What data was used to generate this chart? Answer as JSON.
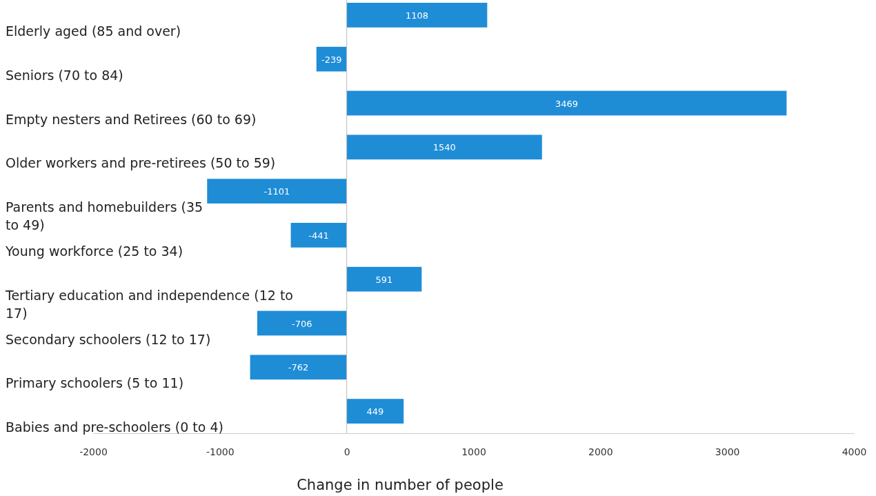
{
  "chart_data": {
    "type": "bar",
    "orientation": "horizontal",
    "xlabel": "Change in number of people",
    "categories": [
      "Elderly aged (85 and over)",
      "Seniors (70 to 84)",
      "Empty nesters and Retirees (60 to 69)",
      "Older workers and pre-retirees (50 to 59)",
      "Parents and homebuilders (35 to 49)",
      "Young workforce (25 to 34)",
      "Tertiary education and independence (12 to 17)",
      "Secondary schoolers (12 to 17)",
      "Primary schoolers (5 to 11)",
      "Babies and pre-schoolers (0 to 4)"
    ],
    "values": [
      1108,
      -239,
      3469,
      1540,
      -1101,
      -441,
      591,
      -706,
      -762,
      449
    ],
    "color": "#1f8dd6",
    "xlim": [
      -2000,
      4000
    ],
    "xticks": [
      -2000,
      -1000,
      0,
      1000,
      2000,
      3000,
      4000
    ],
    "data_labels": true
  }
}
